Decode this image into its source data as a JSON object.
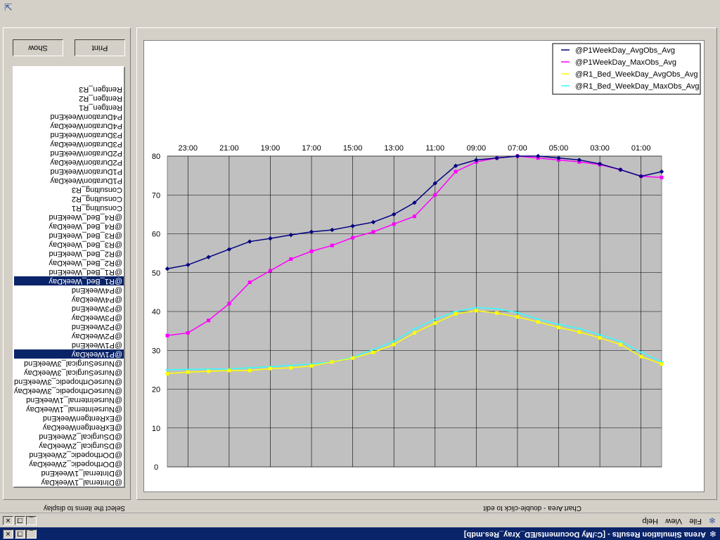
{
  "window": {
    "title": "Arena Simulation Results - [C:/My Documents/ED_Xray_Res.mdb]",
    "app_icon": "snowflake-icon",
    "buttons": {
      "minimize": "_",
      "restore": "❐",
      "close": "✕"
    }
  },
  "menu": {
    "items": [
      "File",
      "View",
      "Help"
    ]
  },
  "status": {
    "left_hint": "Select the items to display",
    "chart_hint": "Chart Area - double-click to edit"
  },
  "panel": {
    "show_label": "Show",
    "print_label": "Print",
    "items": [
      "@DInternal_1WeekDay",
      "@DInternal_1WeekEnd",
      "@DOrthopedic_2WeekDay",
      "@DOrthopedic_2WeekEnd",
      "@DSurgical_2WeekDay",
      "@DSurgical_2WeekEnd",
      "@ExRentgenWeekDay",
      "@ExRentgenWeekEnd",
      "@NurseInternal_1WeekDay",
      "@NurseInternal_1WeekEnd",
      "@NurseOrthopedic_3WeekDay",
      "@NurseOrthopedic_3WeekEnd",
      "@NurseSurgical_3WeekDay",
      "@NurseSurgical_3WeekEnd",
      "@P1WeekDay",
      "@P1WeekEnd",
      "@P2WeekDay",
      "@P2WeekEnd",
      "@P3WeekDay",
      "@P3WeekEnd",
      "@P4WeekDay",
      "@P4WeekEnd",
      "@R1_Bed_WeekDay",
      "@R1_Bed_WeekEnd",
      "@R2_Bed_WeekDay",
      "@R2_Bed_WeekEnd",
      "@R3_Bed_WeekDay",
      "@R3_Bed_WeekEnd",
      "@R4_Bed_WeekDay",
      "@R4_Bed_WeekEnd",
      "Consulting_R1",
      "Consulting_R2",
      "Consulting_R3",
      "P1DurationWeekDay",
      "P1DurationWeekEnd",
      "P2DurationWeekDay",
      "P2DurationWeekEnd",
      "P3DurationWeekDay",
      "P3DurationWeekEnd",
      "P4DurationWeekDay",
      "P4DurationWeekEnd",
      "Rentgen_R1",
      "Rentgen_R2",
      "Rentgen_R3"
    ],
    "selected": [
      "@P1WeekDay",
      "@R1_Bed_WeekDay"
    ]
  },
  "chart_data": {
    "type": "line",
    "ylim": [
      0,
      80
    ],
    "yticks": [
      0,
      10,
      20,
      30,
      40,
      50,
      60,
      70,
      80
    ],
    "xlim": [
      0,
      24
    ],
    "xticks": [
      {
        "x": 1,
        "label": "01:00"
      },
      {
        "x": 3,
        "label": "03:00"
      },
      {
        "x": 5,
        "label": "05:00"
      },
      {
        "x": 7,
        "label": "07:00"
      },
      {
        "x": 9,
        "label": "09:00"
      },
      {
        "x": 11,
        "label": "11:00"
      },
      {
        "x": 13,
        "label": "13:00"
      },
      {
        "x": 15,
        "label": "15:00"
      },
      {
        "x": 17,
        "label": "17:00"
      },
      {
        "x": 19,
        "label": "19:00"
      },
      {
        "x": 21,
        "label": "21:00"
      },
      {
        "x": 23,
        "label": "23:00"
      }
    ],
    "grid": true,
    "legend_position": "bottom-right",
    "series": [
      {
        "name": "@R1_Bed_WeekDay_MaxObs_Avg",
        "color": "#33ffff",
        "marker": "line",
        "x": [
          0,
          1,
          2,
          3,
          4,
          5,
          6,
          7,
          8,
          9,
          10,
          11,
          12,
          13,
          14,
          15,
          16,
          17,
          18,
          19,
          20,
          21,
          22,
          23,
          24
        ],
        "y": [
          27,
          29.5,
          32.3,
          34,
          35.6,
          36.7,
          38,
          39.7,
          40.7,
          41,
          40,
          38,
          35.5,
          32.3,
          30.2,
          28.2,
          27,
          26.5,
          26.1,
          25.8,
          25.5,
          25.2,
          25.2,
          25.1,
          25
        ]
      },
      {
        "name": "@R1_Bed_WeekDay_AvgObs_Avg",
        "color": "#ffff00",
        "marker": "square",
        "x": [
          0,
          1,
          2,
          3,
          4,
          5,
          6,
          7,
          8,
          9,
          10,
          11,
          12,
          13,
          14,
          15,
          16,
          17,
          18,
          19,
          20,
          21,
          22,
          23,
          24
        ],
        "y": [
          26.5,
          28.4,
          31.5,
          33.2,
          34.7,
          35.9,
          37.3,
          38.6,
          39.6,
          40.2,
          39.4,
          37,
          34.5,
          31.5,
          29.5,
          28,
          27,
          26,
          25.5,
          25.3,
          24.8,
          24.8,
          24.6,
          24.4,
          24
        ]
      },
      {
        "name": "@P1WeekDay_MaxObs_Avg",
        "color": "#ff00ff",
        "marker": "square",
        "x": [
          0,
          1,
          2,
          3,
          4,
          5,
          6,
          7,
          8,
          9,
          10,
          11,
          12,
          13,
          14,
          15,
          16,
          17,
          18,
          19,
          20,
          21,
          22,
          23,
          24
        ],
        "y": [
          74.5,
          74.8,
          76.5,
          77.8,
          78.5,
          79,
          79.5,
          80,
          79.5,
          78.5,
          76,
          70,
          64.5,
          62.5,
          60.5,
          59,
          57,
          55.5,
          53.5,
          50.5,
          47.5,
          42,
          37.7,
          34.5,
          33.8
        ]
      },
      {
        "name": "@P1WeekDay_AvgObs_Avg",
        "color": "#000080",
        "marker": "diamond",
        "x": [
          0,
          1,
          2,
          3,
          4,
          5,
          6,
          7,
          8,
          9,
          10,
          11,
          12,
          13,
          14,
          15,
          16,
          17,
          18,
          19,
          20,
          21,
          22,
          23,
          24
        ],
        "y": [
          76,
          74.8,
          76.5,
          78,
          79,
          79.5,
          80,
          80,
          79.5,
          79,
          77.5,
          73,
          68,
          65,
          63,
          62,
          61,
          60.5,
          59.7,
          58.8,
          58,
          56,
          54,
          52,
          51
        ]
      }
    ]
  }
}
